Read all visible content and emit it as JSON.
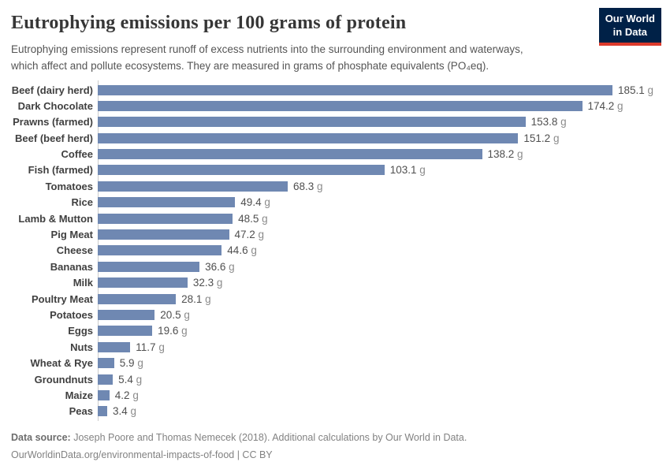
{
  "header": {
    "title": "Eutrophying emissions per 100 grams of protein",
    "subtitle_line1": "Eutrophying emissions represent runoff of excess nutrients into the surrounding environment and waterways,",
    "subtitle_line2": "which affect and pollute ecosystems. They are measured in grams of phosphate equivalents (PO₄eq).",
    "logo": {
      "line1": "Our World",
      "line2": "in Data"
    }
  },
  "chart_data": {
    "type": "bar",
    "orientation": "horizontal",
    "title": "Eutrophying emissions per 100 grams of protein",
    "categories": [
      "Beef (dairy herd)",
      "Dark Chocolate",
      "Prawns (farmed)",
      "Beef (beef herd)",
      "Coffee",
      "Fish (farmed)",
      "Tomatoes",
      "Rice",
      "Lamb & Mutton",
      "Pig Meat",
      "Cheese",
      "Bananas",
      "Milk",
      "Poultry Meat",
      "Potatoes",
      "Eggs",
      "Nuts",
      "Wheat & Rye",
      "Groundnuts",
      "Maize",
      "Peas"
    ],
    "values": [
      185.1,
      174.2,
      153.8,
      151.2,
      138.2,
      103.1,
      68.3,
      49.4,
      48.5,
      47.2,
      44.6,
      36.6,
      32.3,
      28.1,
      20.5,
      19.6,
      11.7,
      5.9,
      5.4,
      4.2,
      3.4
    ],
    "value_suffix": " g",
    "xlim": [
      0,
      185.1
    ],
    "grid": false,
    "legend": "none"
  },
  "colors": {
    "bar": "#6f88b2",
    "axis_line": "#cccccc",
    "logo_background": "#002147",
    "logo_accent": "#dc3a2c"
  },
  "footer": {
    "data_source_label": "Data source:",
    "data_source_text": "Joseph Poore and Thomas Nemecek (2018). Additional calculations by Our World in Data.",
    "link_line": "OurWorldinData.org/environmental-impacts-of-food | CC BY"
  }
}
